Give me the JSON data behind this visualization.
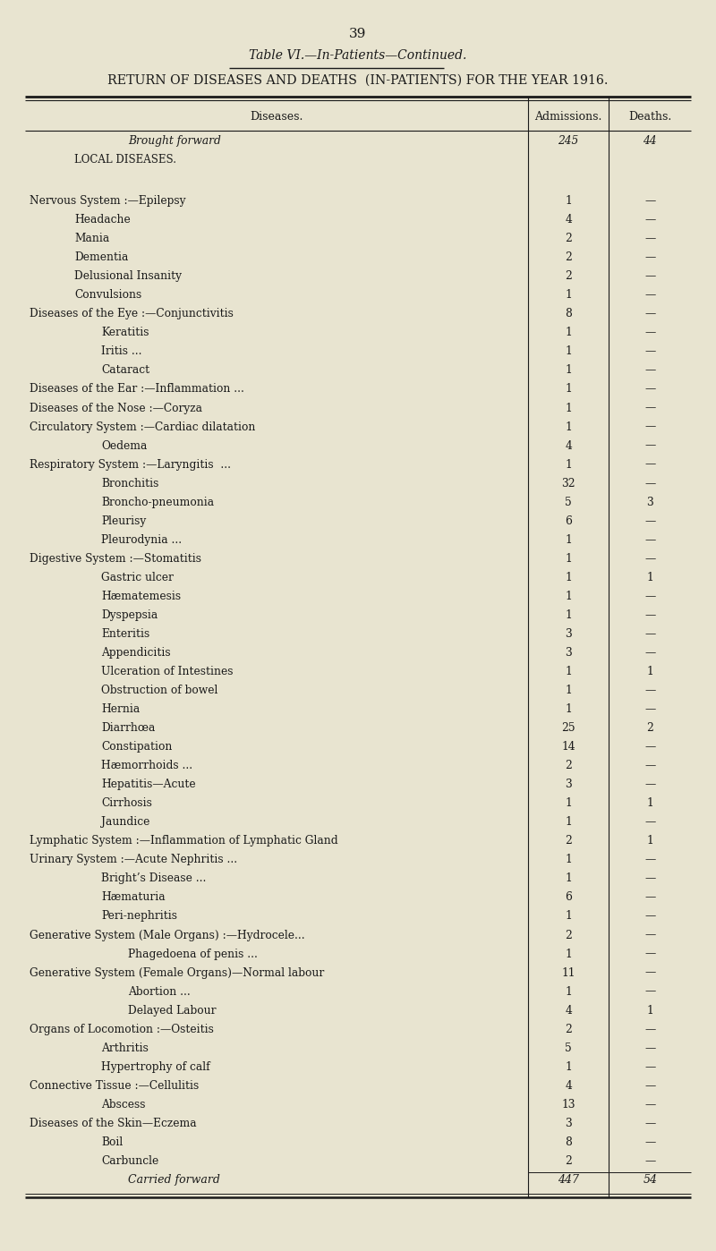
{
  "page_number": "39",
  "table_title_line1": "Table VI.—In-Patients—Continued.",
  "table_title_line2": "RETURN OF DISEASES AND DEATHS  (IN-PATIENTS) FOR THE YEAR 1916.",
  "col_headers": [
    "Diseases.",
    "Admissions.",
    "Deaths."
  ],
  "bg_color": "#e8e4d0",
  "text_color": "#1a1a1a",
  "rows": [
    {
      "label": "Brought forward",
      "indent": 3,
      "italic": true,
      "admissions": "245",
      "deaths": "44",
      "pre_space": 0.5
    },
    {
      "label": "Local Diseases.",
      "indent": 1,
      "italic": false,
      "admissions": "",
      "deaths": "",
      "smallcaps": true,
      "pre_space": 0.0
    },
    {
      "label": "",
      "spacer": true,
      "pre_space": 0.3
    },
    {
      "label": "Nervous System :—Epilepsy",
      "indent": 0,
      "italic": false,
      "admissions": "1",
      "deaths": "—",
      "pre_space": 0.2
    },
    {
      "label": "Headache",
      "indent": 1,
      "italic": false,
      "admissions": "4",
      "deaths": "—"
    },
    {
      "label": "Mania",
      "indent": 1,
      "italic": false,
      "admissions": "2",
      "deaths": "—"
    },
    {
      "label": "Dementia",
      "indent": 1,
      "italic": false,
      "admissions": "2",
      "deaths": "—"
    },
    {
      "label": "Delusional Insanity",
      "indent": 1,
      "italic": false,
      "admissions": "2",
      "deaths": "—"
    },
    {
      "label": "Convulsions",
      "indent": 1,
      "italic": false,
      "admissions": "1",
      "deaths": "—"
    },
    {
      "label": "Diseases of the Eye :—Conjunctivitis",
      "indent": 0,
      "italic": false,
      "admissions": "8",
      "deaths": "—"
    },
    {
      "label": "Keratitis",
      "indent": 2,
      "italic": false,
      "admissions": "1",
      "deaths": "—"
    },
    {
      "label": "Iritis ...",
      "indent": 2,
      "italic": false,
      "admissions": "1",
      "deaths": "—"
    },
    {
      "label": "Cataract",
      "indent": 2,
      "italic": false,
      "admissions": "1",
      "deaths": "—"
    },
    {
      "label": "Diseases of the Ear :—Inflammation ...",
      "indent": 0,
      "italic": false,
      "admissions": "1",
      "deaths": "—"
    },
    {
      "label": "Diseases of the Nose :—Coryza",
      "indent": 0,
      "italic": false,
      "admissions": "1",
      "deaths": "—"
    },
    {
      "label": "Circulatory System :—Cardiac dilatation",
      "indent": 0,
      "italic": false,
      "admissions": "1",
      "deaths": "—"
    },
    {
      "label": "Oedema",
      "indent": 2,
      "italic": false,
      "admissions": "4",
      "deaths": "—"
    },
    {
      "label": "Respiratory System :—Laryngitis  ...",
      "indent": 0,
      "italic": false,
      "admissions": "1",
      "deaths": "—"
    },
    {
      "label": "Bronchitis",
      "indent": 2,
      "italic": false,
      "admissions": "32",
      "deaths": "—"
    },
    {
      "label": "Broncho-pneumonia",
      "indent": 2,
      "italic": false,
      "admissions": "5",
      "deaths": "3"
    },
    {
      "label": "Pleurisy",
      "indent": 2,
      "italic": false,
      "admissions": "6",
      "deaths": "—"
    },
    {
      "label": "Pleurodynia ...",
      "indent": 2,
      "italic": false,
      "admissions": "1",
      "deaths": "—"
    },
    {
      "label": "Digestive System :—Stomatitis",
      "indent": 0,
      "italic": false,
      "admissions": "1",
      "deaths": "—"
    },
    {
      "label": "Gastric ulcer",
      "indent": 2,
      "italic": false,
      "admissions": "1",
      "deaths": "1"
    },
    {
      "label": "Hæmatemesis",
      "indent": 2,
      "italic": false,
      "admissions": "1",
      "deaths": "—"
    },
    {
      "label": "Dyspepsia",
      "indent": 2,
      "italic": false,
      "admissions": "1",
      "deaths": "—"
    },
    {
      "label": "Enteritis",
      "indent": 2,
      "italic": false,
      "admissions": "3",
      "deaths": "—"
    },
    {
      "label": "Appendicitis",
      "indent": 2,
      "italic": false,
      "admissions": "3",
      "deaths": "—"
    },
    {
      "label": "Ulceration of Intestines",
      "indent": 2,
      "italic": false,
      "admissions": "1",
      "deaths": "1"
    },
    {
      "label": "Obstruction of bowel",
      "indent": 2,
      "italic": false,
      "admissions": "1",
      "deaths": "—"
    },
    {
      "label": "Hernia",
      "indent": 2,
      "italic": false,
      "admissions": "1",
      "deaths": "—"
    },
    {
      "label": "Diarrhœa",
      "indent": 2,
      "italic": false,
      "admissions": "25",
      "deaths": "2"
    },
    {
      "label": "Constipation",
      "indent": 2,
      "italic": false,
      "admissions": "14",
      "deaths": "—"
    },
    {
      "label": "Hæmorrhoids ...",
      "indent": 2,
      "italic": false,
      "admissions": "2",
      "deaths": "—"
    },
    {
      "label": "Hepatitis—Acute",
      "indent": 2,
      "italic": false,
      "admissions": "3",
      "deaths": "—"
    },
    {
      "label": "Cirrhosis",
      "indent": 2,
      "italic": false,
      "admissions": "1",
      "deaths": "1"
    },
    {
      "label": "Jaundice",
      "indent": 2,
      "italic": false,
      "admissions": "1",
      "deaths": "—"
    },
    {
      "label": "Lymphatic System :—Inflammation of Lymphatic Gland",
      "indent": 0,
      "italic": false,
      "admissions": "2",
      "deaths": "1"
    },
    {
      "label": "Urinary System :—Acute Nephritis ...",
      "indent": 0,
      "italic": false,
      "admissions": "1",
      "deaths": "—"
    },
    {
      "label": "Bright’s Disease ...",
      "indent": 2,
      "italic": false,
      "admissions": "1",
      "deaths": "—"
    },
    {
      "label": "Hæmaturia",
      "indent": 2,
      "italic": false,
      "admissions": "6",
      "deaths": "—"
    },
    {
      "label": "Peri-nephritis",
      "indent": 2,
      "italic": false,
      "admissions": "1",
      "deaths": "—"
    },
    {
      "label": "Generative System (Male Organs) :—Hydrocele...",
      "indent": 0,
      "italic": false,
      "admissions": "2",
      "deaths": "—"
    },
    {
      "label": "Phagedoena of penis ...",
      "indent": 3,
      "italic": false,
      "admissions": "1",
      "deaths": "—"
    },
    {
      "label": "Generative System (Female Organs)—Normal labour",
      "indent": 0,
      "italic": false,
      "admissions": "11",
      "deaths": "—"
    },
    {
      "label": "Abortion ...",
      "indent": 3,
      "italic": false,
      "admissions": "1",
      "deaths": "—"
    },
    {
      "label": "Delayed Labour",
      "indent": 3,
      "italic": false,
      "admissions": "4",
      "deaths": "1"
    },
    {
      "label": "Organs of Locomotion :—Osteitis",
      "indent": 0,
      "italic": false,
      "admissions": "2",
      "deaths": "—"
    },
    {
      "label": "Arthritis",
      "indent": 2,
      "italic": false,
      "admissions": "5",
      "deaths": "—"
    },
    {
      "label": "Hypertrophy of calf",
      "indent": 2,
      "italic": false,
      "admissions": "1",
      "deaths": "—"
    },
    {
      "label": "Connective Tissue :—Cellulitis",
      "indent": 0,
      "italic": false,
      "admissions": "4",
      "deaths": "—"
    },
    {
      "label": "Abscess",
      "indent": 2,
      "italic": false,
      "admissions": "13",
      "deaths": "—"
    },
    {
      "label": "Diseases of the Skin—Eczema",
      "indent": 0,
      "italic": false,
      "admissions": "3",
      "deaths": "—"
    },
    {
      "label": "Boil",
      "indent": 2,
      "italic": false,
      "admissions": "8",
      "deaths": "—"
    },
    {
      "label": "Carbuncle",
      "indent": 2,
      "italic": false,
      "admissions": "2",
      "deaths": "—"
    },
    {
      "label": "Carried forward",
      "indent": 3,
      "italic": true,
      "admissions": "447",
      "deaths": "54",
      "footer": true
    }
  ],
  "figsize": [
    8.0,
    13.98
  ],
  "dpi": 100
}
